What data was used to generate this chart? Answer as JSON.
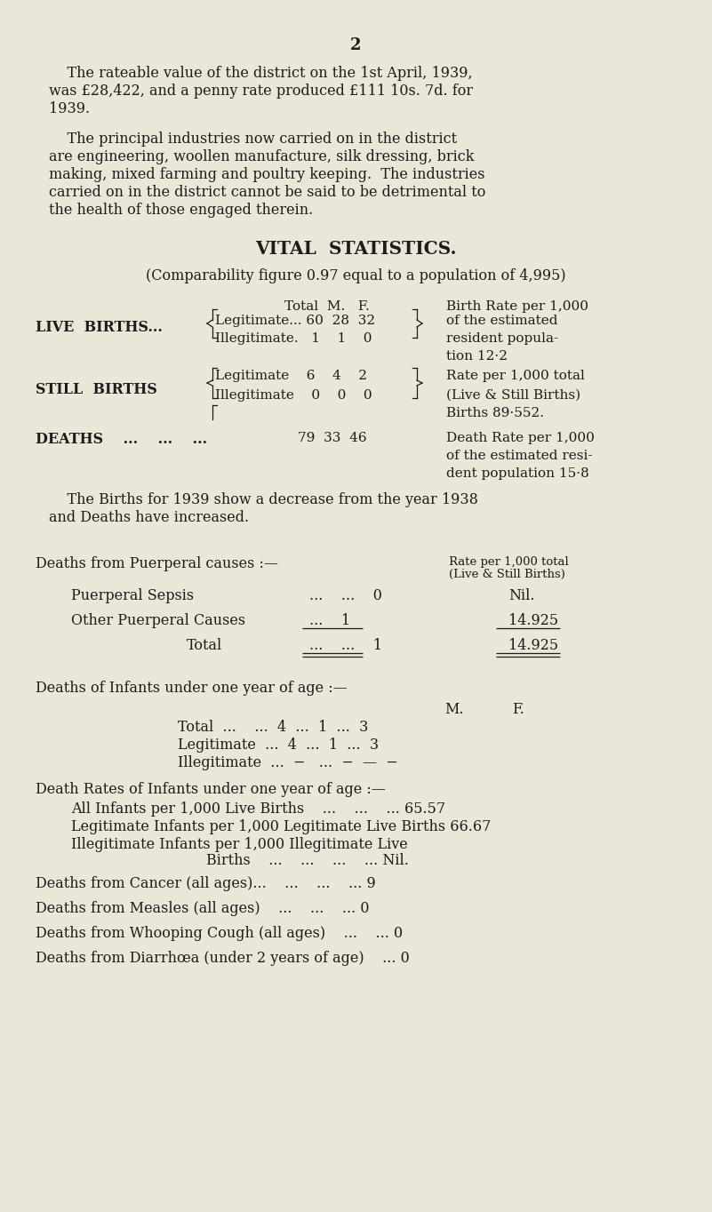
{
  "bg_color": "#eae6d8",
  "text_color": "#1c1c1c",
  "page_number": "2",
  "para1_lines": [
    "    The rateable value of the district on the 1st April, 1939,",
    "was £28,422, and a penny rate produced £111 10s. 7d. for",
    "1939."
  ],
  "para2_lines": [
    "    The principal industries now carried on in the district",
    "are engineering, woollen manufacture, silk dressing, brick",
    "making, mixed farming and poultry keeping.  The industries",
    "carried on in the district cannot be said to be detrimental to",
    "the health of those engaged therein."
  ],
  "section_title": "VITAL  STATISTICS.",
  "comparability": "(Comparability figure 0.97 equal to a population of 4,995)",
  "births_note_lines": [
    "    The Births for 1939 show a decrease from the year 1938",
    "and Deaths have increased."
  ]
}
